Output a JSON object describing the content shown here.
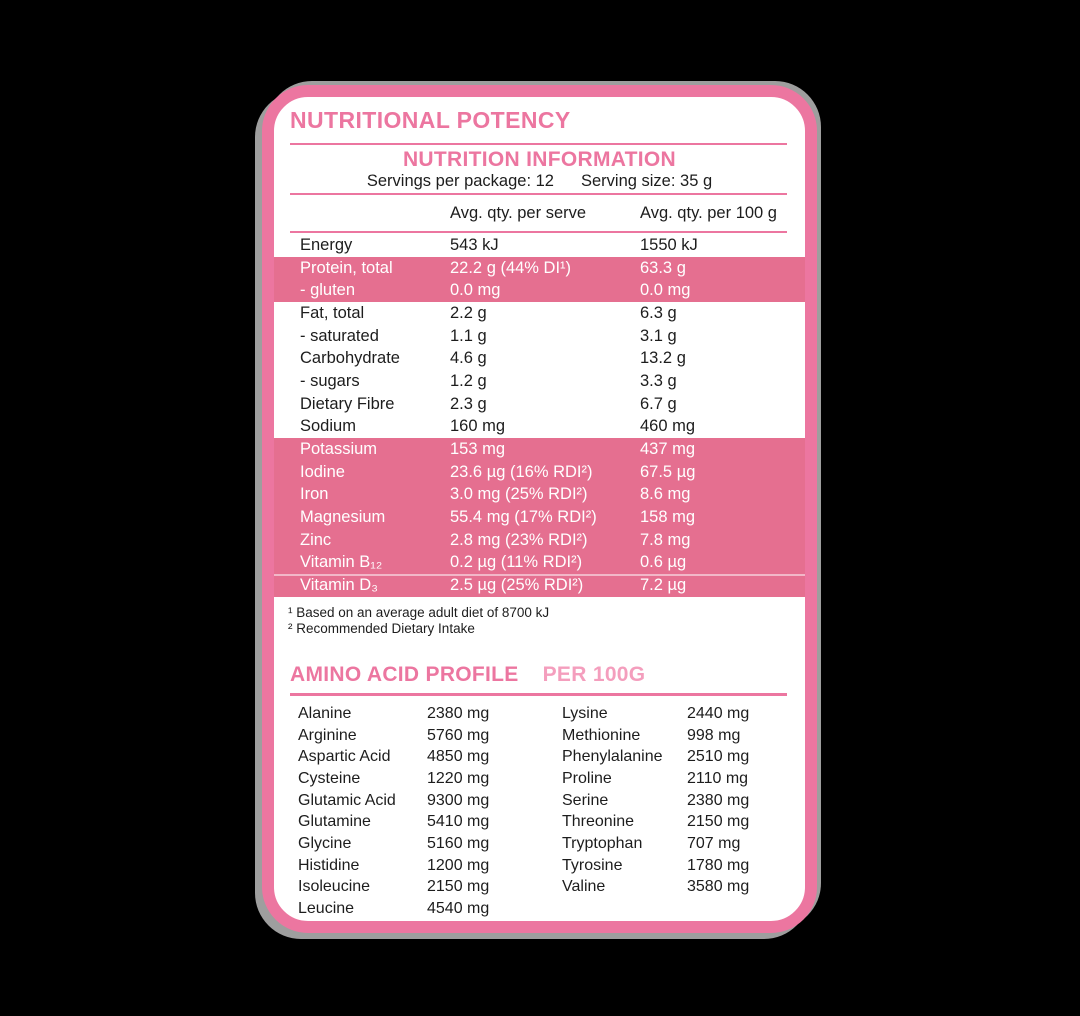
{
  "colors": {
    "background": "#000000",
    "brand_pink": "#ec76a0",
    "highlight_row_pink": "#e56f90",
    "light_pink": "#f49ebd",
    "text_dark": "#1d1d1d",
    "shadow_grey": "#9e9e9e"
  },
  "title": "NUTRITIONAL POTENCY",
  "nutrition": {
    "heading": "NUTRITION INFORMATION",
    "servings_per_package": "Servings per package: 12",
    "serving_size": "Serving size: 35 g",
    "col_serve": "Avg. qty. per serve",
    "col_100g": "Avg. qty. per 100 g",
    "rows": [
      {
        "label": "Energy",
        "serve": "543 kJ",
        "per100": "1550 kJ",
        "highlight": false
      },
      {
        "label": "Protein, total",
        "serve": "22.2 g (44% DI¹)",
        "per100": "63.3 g",
        "highlight": true
      },
      {
        "label": "- gluten",
        "serve": "0.0 mg",
        "per100": "0.0 mg",
        "highlight": true
      },
      {
        "label": "Fat, total",
        "serve": "2.2 g",
        "per100": "6.3 g",
        "highlight": false
      },
      {
        "label": "- saturated",
        "serve": "1.1 g",
        "per100": "3.1 g",
        "highlight": false
      },
      {
        "label": "Carbohydrate",
        "serve": "4.6 g",
        "per100": "13.2 g",
        "highlight": false
      },
      {
        "label": "- sugars",
        "serve": "1.2 g",
        "per100": "3.3 g",
        "highlight": false
      },
      {
        "label": "Dietary Fibre",
        "serve": "2.3 g",
        "per100": "6.7 g",
        "highlight": false
      },
      {
        "label": "Sodium",
        "serve": "160 mg",
        "per100": "460 mg",
        "highlight": false
      },
      {
        "label": "Potassium",
        "serve": "153 mg",
        "per100": "437 mg",
        "highlight": true
      },
      {
        "label": "Iodine",
        "serve": "23.6 µg (16% RDI²)",
        "per100": "67.5 µg",
        "highlight": true
      },
      {
        "label": "Iron",
        "serve": "3.0 mg (25% RDI²)",
        "per100": "8.6 mg",
        "highlight": true
      },
      {
        "label": "Magnesium",
        "serve": "55.4 mg (17% RDI²)",
        "per100": "158 mg",
        "highlight": true
      },
      {
        "label": "Zinc",
        "serve": "2.8 mg (23% RDI²)",
        "per100": "7.8 mg",
        "highlight": true
      },
      {
        "label": "Vitamin B₁₂",
        "serve": "0.2 µg (11% RDI²)",
        "per100": "0.6 µg",
        "highlight": true
      },
      {
        "label": "Vitamin D₃",
        "serve": "2.5 µg (25% RDI²)",
        "per100": "7.2 µg",
        "highlight": true,
        "separator": true
      }
    ],
    "footnotes": [
      "¹ Based on an average adult diet of 8700 kJ",
      "² Recommended Dietary Intake"
    ]
  },
  "amino": {
    "heading": "AMINO ACID PROFILE",
    "subheading": "PER 100G",
    "left": [
      {
        "name": "Alanine",
        "value": "2380 mg"
      },
      {
        "name": "Arginine",
        "value": "5760 mg"
      },
      {
        "name": "Aspartic Acid",
        "value": "4850 mg"
      },
      {
        "name": "Cysteine",
        "value": "1220 mg"
      },
      {
        "name": "Glutamic Acid",
        "value": "9300 mg"
      },
      {
        "name": "Glutamine",
        "value": "5410 mg"
      },
      {
        "name": "Glycine",
        "value": "5160 mg"
      },
      {
        "name": "Histidine",
        "value": "1200 mg"
      },
      {
        "name": "Isoleucine",
        "value": "2150 mg"
      },
      {
        "name": "Leucine",
        "value": "4540 mg"
      }
    ],
    "right": [
      {
        "name": "Lysine",
        "value": "2440 mg"
      },
      {
        "name": "Methionine",
        "value": "998 mg"
      },
      {
        "name": "Phenylalanine",
        "value": "2510 mg"
      },
      {
        "name": "Proline",
        "value": "2110 mg"
      },
      {
        "name": "Serine",
        "value": "2380 mg"
      },
      {
        "name": "Threonine",
        "value": "2150 mg"
      },
      {
        "name": "Tryptophan",
        "value": "707 mg"
      },
      {
        "name": "Tyrosine",
        "value": "1780 mg"
      },
      {
        "name": "Valine",
        "value": "3580 mg"
      }
    ]
  }
}
